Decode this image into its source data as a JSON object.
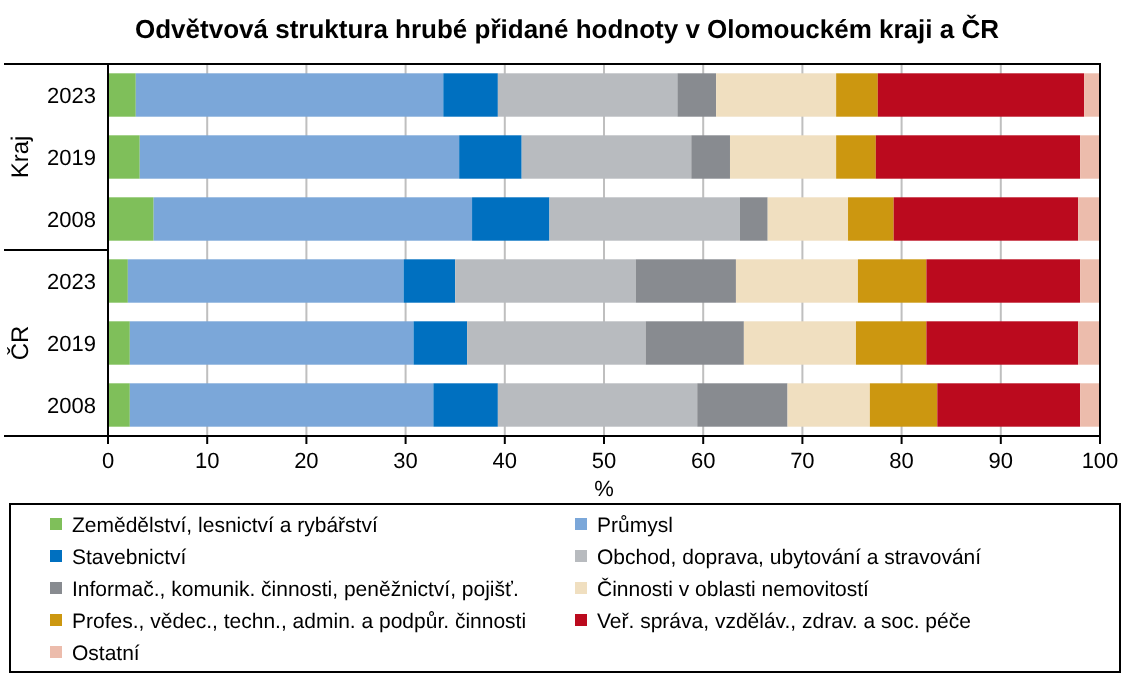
{
  "chart_data": {
    "type": "bar",
    "orientation": "horizontal",
    "stacked": true,
    "title": "Odvětvová struktura  hrubé přidané hodnoty v Olomouckém kraji a ČR",
    "xlabel": "%",
    "categories": [
      "2023",
      "2019",
      "2008",
      "2023",
      "2019",
      "2008"
    ],
    "annotations": [
      "Kraj",
      "ČR"
    ],
    "xlim": [
      0,
      100
    ],
    "xticks": [
      0,
      10,
      20,
      30,
      40,
      50,
      60,
      70,
      80,
      90,
      100
    ],
    "grid": "x",
    "legend": "bottom",
    "series": [
      {
        "name": "Zemědělství, lesnictví a rybářství",
        "color": "#7fbf5a",
        "values": [
          2.8,
          3.2,
          4.6,
          2.0,
          2.2,
          2.2
        ]
      },
      {
        "name": "Průmysl",
        "color": "#7ba7d9",
        "values": [
          31.0,
          32.2,
          32.1,
          27.8,
          28.6,
          30.6
        ]
      },
      {
        "name": "Stavebnictví",
        "color": "#0070c0",
        "values": [
          5.5,
          6.3,
          7.8,
          5.2,
          5.4,
          6.5
        ]
      },
      {
        "name": "Obchod, doprava, ubytování a stravování",
        "color": "#b8bbbf",
        "values": [
          18.1,
          17.1,
          19.2,
          18.2,
          18.0,
          20.1
        ]
      },
      {
        "name": "Informač., komunik. činnosti, peněžnictví, pojišť.",
        "color": "#888b90",
        "values": [
          3.9,
          3.9,
          2.8,
          10.1,
          9.9,
          9.1
        ]
      },
      {
        "name": "Činnosti v oblasti nemovitostí",
        "color": "#f0dfc0",
        "values": [
          12.1,
          10.7,
          8.1,
          12.3,
          11.3,
          8.3
        ]
      },
      {
        "name": "Profes., vědec., techn., admin. a podpůr. činnosti",
        "color": "#cc9710",
        "values": [
          4.2,
          4.0,
          4.6,
          6.9,
          7.1,
          6.8
        ]
      },
      {
        "name": "Veř. správa, vzděláv., zdrav. a soc. péče",
        "color": "#bb0a1e",
        "values": [
          20.8,
          20.6,
          18.6,
          15.5,
          15.3,
          14.4
        ]
      },
      {
        "name": "Ostatní",
        "color": "#ecbcac",
        "values": [
          1.6,
          2.0,
          2.2,
          2.0,
          2.2,
          2.0
        ]
      }
    ]
  }
}
